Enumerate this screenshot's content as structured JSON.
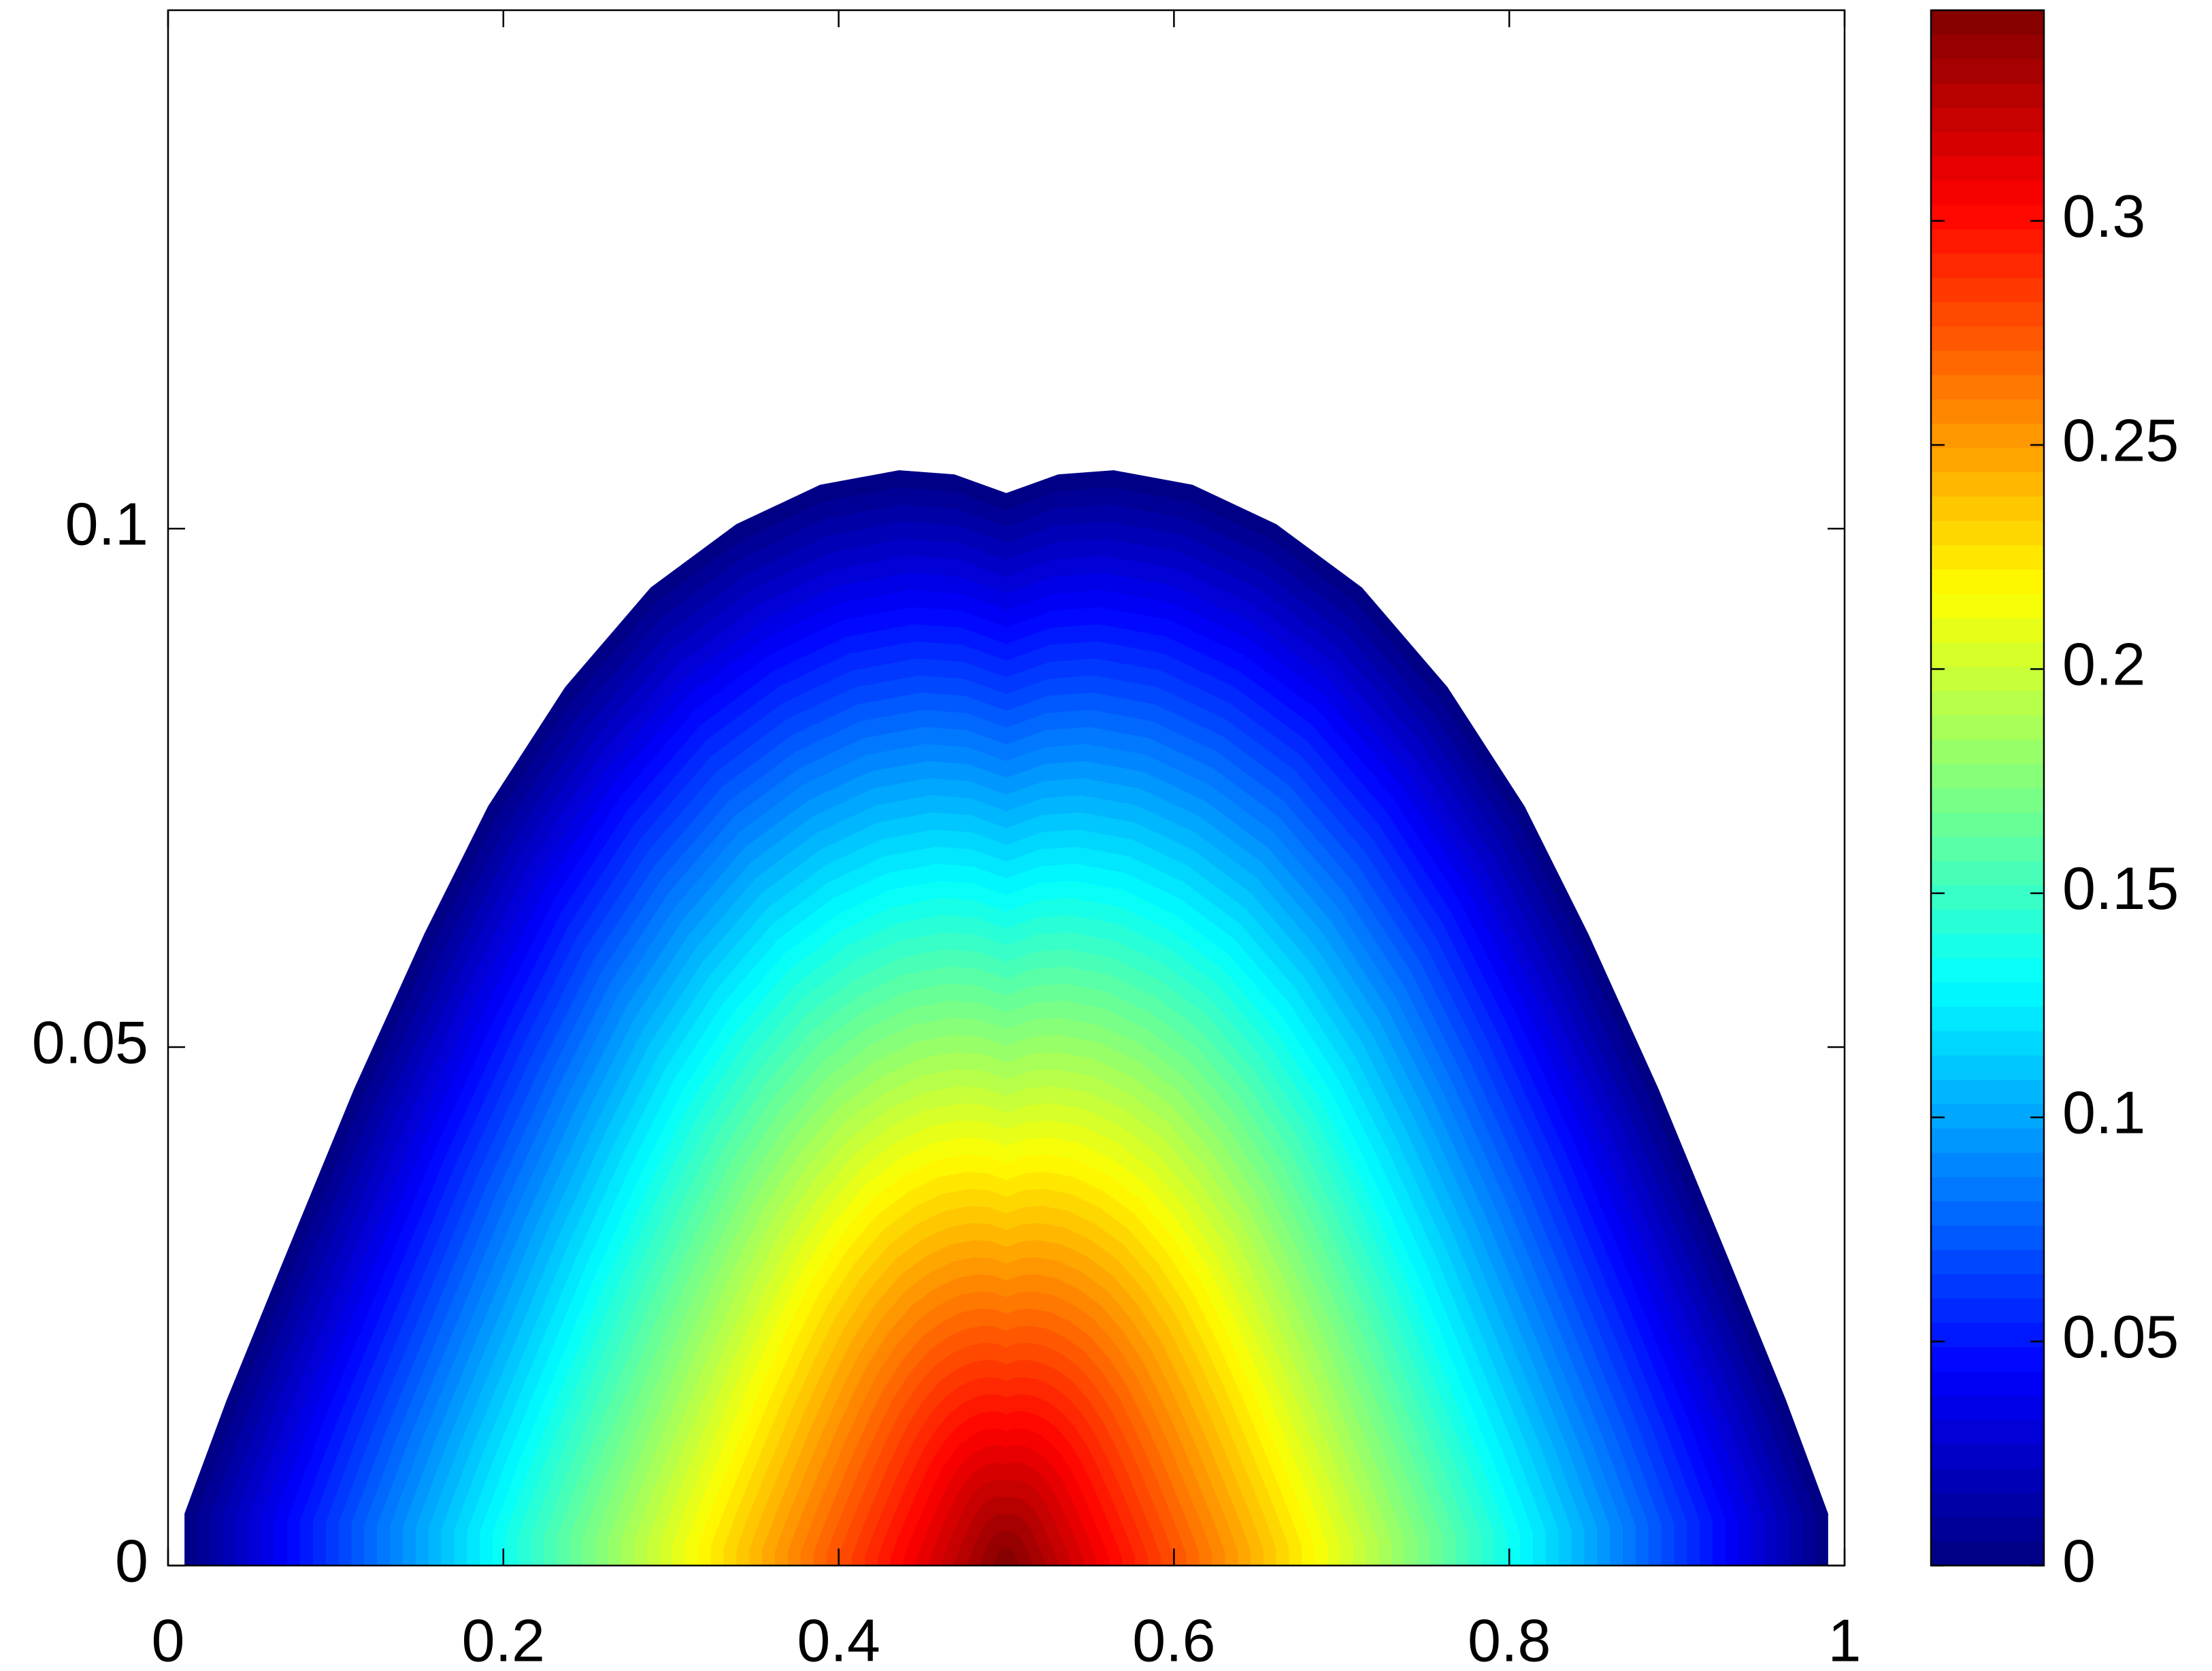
{
  "chart_data": {
    "type": "contour",
    "x": [
      0.01,
      0.01,
      0.035,
      0.069,
      0.111,
      0.153,
      0.191,
      0.237,
      0.288,
      0.339,
      0.389,
      0.436,
      0.469,
      0.5,
      0.531,
      0.564,
      0.611,
      0.661,
      0.712,
      0.763,
      0.809,
      0.847,
      0.889,
      0.931,
      0.965,
      0.99,
      0.99
    ],
    "y": [
      0,
      0.005,
      0.0159,
      0.0294,
      0.0459,
      0.0609,
      0.0732,
      0.0847,
      0.0943,
      0.1004,
      0.1042,
      0.1056,
      0.1052,
      0.1034,
      0.1052,
      0.1056,
      0.1042,
      0.1004,
      0.0943,
      0.0847,
      0.0732,
      0.0609,
      0.0459,
      0.0294,
      0.0159,
      0.005,
      0
    ],
    "xlim": [
      0,
      1
    ],
    "xticks": [
      0,
      0.2,
      0.4,
      0.6,
      0.8,
      1
    ],
    "ylim": [
      0,
      0.15
    ],
    "yticks": [
      0,
      0.05,
      0.1
    ],
    "zlim": [
      0,
      0.347
    ],
    "colorbar_ticks": [
      0,
      0.05,
      0.1,
      0.15,
      0.2,
      0.25,
      0.3
    ],
    "colormap": "jet"
  }
}
